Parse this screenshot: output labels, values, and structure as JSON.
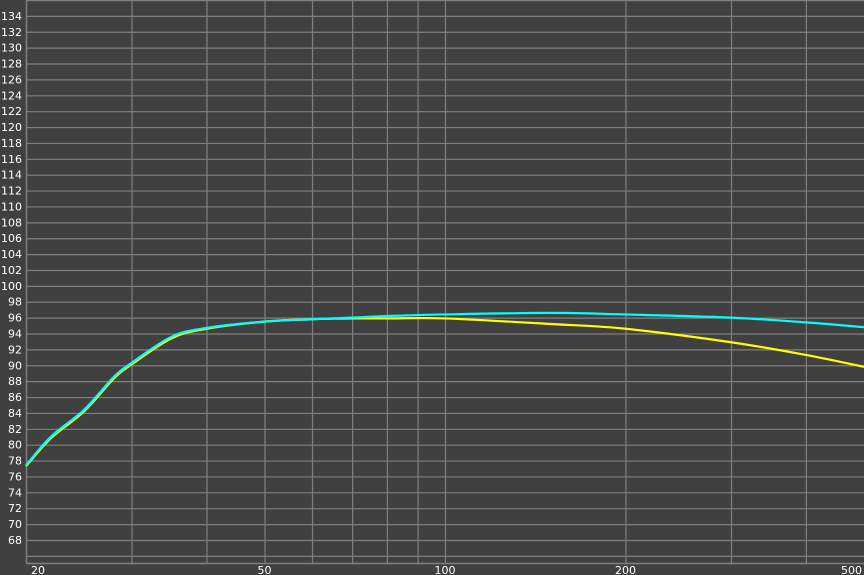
{
  "chart_data": {
    "type": "line",
    "title": "",
    "xlabel": "",
    "ylabel": "",
    "x_scale": "log",
    "xlim": [
      20,
      500
    ],
    "ylim": [
      65.1,
      136
    ],
    "grid": true,
    "background_color": "#404040",
    "grid_color": "#808080",
    "x_tick_labels": [
      "20",
      "50",
      "100",
      "200",
      "500"
    ],
    "x_gridlines": [
      30,
      40,
      50,
      60,
      70,
      80,
      90,
      100,
      200,
      300,
      400
    ],
    "y_tick_labels": [
      "68",
      "70",
      "72",
      "74",
      "76",
      "78",
      "80",
      "82",
      "84",
      "86",
      "88",
      "90",
      "92",
      "94",
      "96",
      "98",
      "100",
      "102",
      "104",
      "106",
      "108",
      "110",
      "112",
      "114",
      "116",
      "118",
      "120",
      "122",
      "124",
      "126",
      "128",
      "130",
      "132",
      "134"
    ],
    "y_gridlines_step": 2,
    "x": [
      20,
      22,
      25,
      28,
      30,
      35,
      40,
      50,
      60,
      70,
      80,
      100,
      150,
      200,
      300,
      400,
      500
    ],
    "series": [
      {
        "color": "#ffff00",
        "values": [
          77.3,
          80.8,
          84.2,
          88.3,
          90.1,
          93.4,
          94.6,
          95.5,
          95.8,
          95.9,
          95.9,
          95.9,
          95.2,
          94.6,
          92.9,
          91.3,
          89.8
        ]
      },
      {
        "color": "#00ffff",
        "values": [
          77.4,
          81.0,
          84.4,
          88.5,
          90.3,
          93.6,
          94.7,
          95.5,
          95.8,
          96.0,
          96.2,
          96.4,
          96.6,
          96.4,
          96.0,
          95.4,
          94.8
        ]
      }
    ]
  }
}
